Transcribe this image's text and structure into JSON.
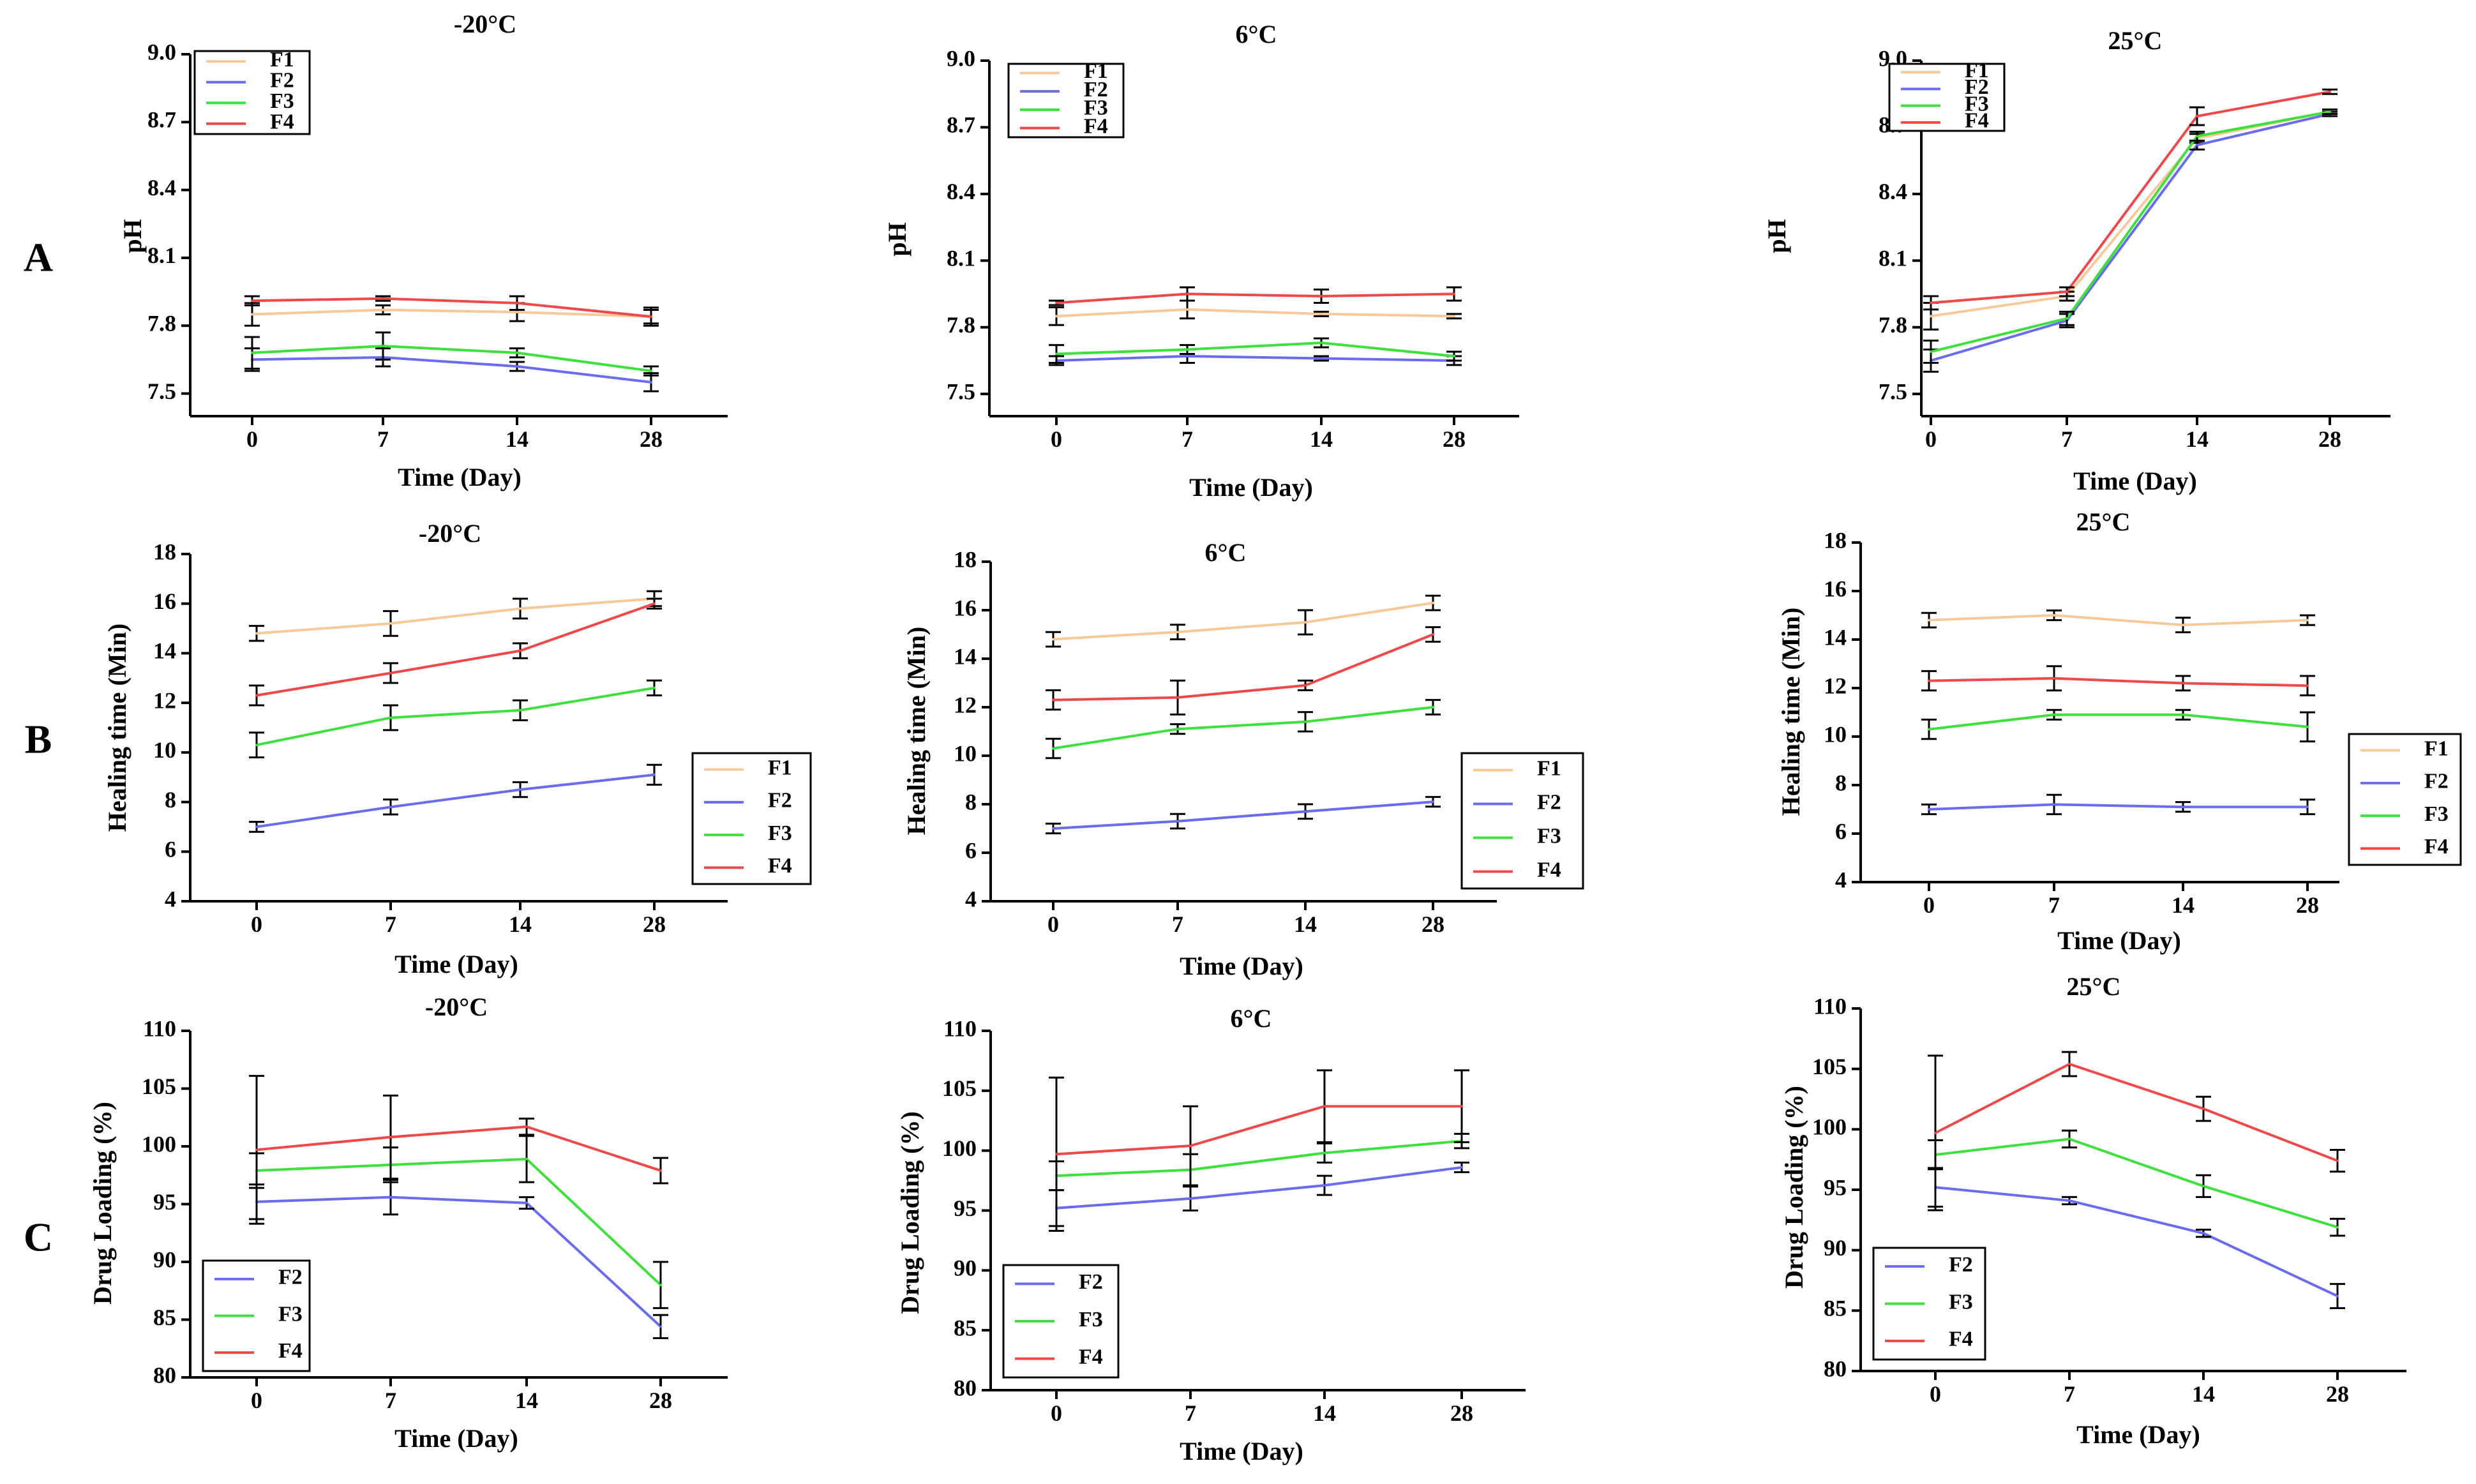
{
  "row_labels": [
    "A",
    "B",
    "C"
  ],
  "chart_data": [
    {
      "id": "A1",
      "row": "A",
      "type": "line",
      "title": "-20°C",
      "xlabel": "Time (Day)",
      "ylabel": "pH",
      "categories": [
        "0",
        "7",
        "14",
        "28"
      ],
      "ylim": [
        7.4,
        9.0
      ],
      "yticks": [
        "7.5",
        "7.8",
        "8.1",
        "8.4",
        "8.7",
        "9.0"
      ],
      "series": [
        {
          "name": "F1",
          "color": "#f5c99a",
          "values": [
            7.85,
            7.87,
            7.86,
            7.84
          ],
          "errors": [
            0.05,
            0.02,
            0.04,
            0.03
          ]
        },
        {
          "name": "F2",
          "color": "#6b6bf0",
          "values": [
            7.65,
            7.66,
            7.62,
            7.55
          ],
          "errors": [
            0.05,
            0.04,
            0.02,
            0.04
          ]
        },
        {
          "name": "F3",
          "color": "#3ee03e",
          "values": [
            7.68,
            7.71,
            7.68,
            7.6
          ],
          "errors": [
            0.07,
            0.06,
            0.02,
            0.02
          ]
        },
        {
          "name": "F4",
          "color": "#f04848",
          "values": [
            7.91,
            7.92,
            7.9,
            7.84
          ],
          "errors": [
            0.02,
            0.01,
            0.03,
            0.04
          ]
        }
      ]
    },
    {
      "id": "A2",
      "row": "A",
      "type": "line",
      "title": "6°C",
      "xlabel": "Time (Day)",
      "ylabel": "pH",
      "categories": [
        "0",
        "7",
        "14",
        "28"
      ],
      "ylim": [
        7.4,
        9.0
      ],
      "yticks": [
        "7.5",
        "7.8",
        "8.1",
        "8.4",
        "8.7",
        "9.0"
      ],
      "series": [
        {
          "name": "F1",
          "color": "#f5c99a",
          "values": [
            7.85,
            7.88,
            7.86,
            7.85
          ],
          "errors": [
            0.04,
            0.04,
            0.01,
            0.01
          ]
        },
        {
          "name": "F2",
          "color": "#6b6bf0",
          "values": [
            7.65,
            7.67,
            7.66,
            7.65
          ],
          "errors": [
            0.02,
            0.03,
            0.01,
            0.02
          ]
        },
        {
          "name": "F3",
          "color": "#3ee03e",
          "values": [
            7.68,
            7.7,
            7.73,
            7.67
          ],
          "errors": [
            0.04,
            0.02,
            0.02,
            0.02
          ]
        },
        {
          "name": "F4",
          "color": "#f04848",
          "values": [
            7.91,
            7.95,
            7.94,
            7.95
          ],
          "errors": [
            0.01,
            0.03,
            0.03,
            0.03
          ]
        }
      ]
    },
    {
      "id": "A3",
      "row": "A",
      "type": "line",
      "title": "25°C",
      "xlabel": "Time (Day)",
      "ylabel": "pH",
      "categories": [
        "0",
        "7",
        "14",
        "28"
      ],
      "ylim": [
        7.4,
        9.0
      ],
      "yticks": [
        "7.5",
        "7.8",
        "8.1",
        "8.4",
        "8.7",
        "9.0"
      ],
      "series": [
        {
          "name": "F1",
          "color": "#f5c99a",
          "values": [
            7.85,
            7.94,
            8.65,
            8.77
          ],
          "errors": [
            0.06,
            0.02,
            0.02,
            0.01
          ]
        },
        {
          "name": "F2",
          "color": "#6b6bf0",
          "values": [
            7.65,
            7.83,
            8.62,
            8.76
          ],
          "errors": [
            0.05,
            0.03,
            0.02,
            0.01
          ]
        },
        {
          "name": "F3",
          "color": "#3ee03e",
          "values": [
            7.69,
            7.84,
            8.66,
            8.77
          ],
          "errors": [
            0.05,
            0.03,
            0.02,
            0.01
          ]
        },
        {
          "name": "F4",
          "color": "#f04848",
          "values": [
            7.91,
            7.96,
            8.75,
            8.86
          ],
          "errors": [
            0.03,
            0.02,
            0.04,
            0.01
          ]
        }
      ]
    },
    {
      "id": "B1",
      "row": "B",
      "type": "line",
      "title": "-20°C",
      "xlabel": "Time (Day)",
      "ylabel": "Healing time (Min)",
      "categories": [
        "0",
        "7",
        "14",
        "28"
      ],
      "ylim": [
        4,
        18
      ],
      "yticks": [
        "4",
        "6",
        "8",
        "10",
        "12",
        "14",
        "16",
        "18"
      ],
      "series": [
        {
          "name": "F1",
          "color": "#f5c99a",
          "values": [
            14.8,
            15.2,
            15.8,
            16.2
          ],
          "errors": [
            0.3,
            0.5,
            0.4,
            0.3
          ]
        },
        {
          "name": "F2",
          "color": "#6b6bf0",
          "values": [
            7.0,
            7.8,
            8.5,
            9.1
          ],
          "errors": [
            0.2,
            0.3,
            0.3,
            0.4
          ]
        },
        {
          "name": "F3",
          "color": "#3ee03e",
          "values": [
            10.3,
            11.4,
            11.7,
            12.6
          ],
          "errors": [
            0.5,
            0.5,
            0.4,
            0.3
          ]
        },
        {
          "name": "F4",
          "color": "#f04848",
          "values": [
            12.3,
            13.2,
            14.1,
            16.0
          ],
          "errors": [
            0.4,
            0.4,
            0.3,
            0.2
          ]
        }
      ]
    },
    {
      "id": "B2",
      "row": "B",
      "type": "line",
      "title": "6°C",
      "xlabel": "Time (Day)",
      "ylabel": "Healing time (Min)",
      "categories": [
        "0",
        "7",
        "14",
        "28"
      ],
      "ylim": [
        4,
        18
      ],
      "yticks": [
        "4",
        "6",
        "8",
        "10",
        "12",
        "14",
        "16",
        "18"
      ],
      "series": [
        {
          "name": "F1",
          "color": "#f5c99a",
          "values": [
            14.8,
            15.1,
            15.5,
            16.3
          ],
          "errors": [
            0.3,
            0.3,
            0.5,
            0.3
          ]
        },
        {
          "name": "F2",
          "color": "#6b6bf0",
          "values": [
            7.0,
            7.3,
            7.7,
            8.1
          ],
          "errors": [
            0.2,
            0.3,
            0.3,
            0.2
          ]
        },
        {
          "name": "F3",
          "color": "#3ee03e",
          "values": [
            10.3,
            11.1,
            11.4,
            12.0
          ],
          "errors": [
            0.4,
            0.2,
            0.4,
            0.3
          ]
        },
        {
          "name": "F4",
          "color": "#f04848",
          "values": [
            12.3,
            12.4,
            12.9,
            15.0
          ],
          "errors": [
            0.4,
            0.7,
            0.2,
            0.3
          ]
        }
      ]
    },
    {
      "id": "B3",
      "row": "B",
      "type": "line",
      "title": "25°C",
      "xlabel": "Time (Day)",
      "ylabel": "Healing time (Min)",
      "categories": [
        "0",
        "7",
        "14",
        "28"
      ],
      "ylim": [
        4,
        18
      ],
      "yticks": [
        "4",
        "6",
        "8",
        "10",
        "12",
        "14",
        "16",
        "18"
      ],
      "series": [
        {
          "name": "F1",
          "color": "#f5c99a",
          "values": [
            14.8,
            15.0,
            14.6,
            14.8
          ],
          "errors": [
            0.3,
            0.2,
            0.3,
            0.2
          ]
        },
        {
          "name": "F2",
          "color": "#6b6bf0",
          "values": [
            7.0,
            7.2,
            7.1,
            7.1
          ],
          "errors": [
            0.2,
            0.4,
            0.2,
            0.3
          ]
        },
        {
          "name": "F3",
          "color": "#3ee03e",
          "values": [
            10.3,
            10.9,
            10.9,
            10.4
          ],
          "errors": [
            0.4,
            0.2,
            0.2,
            0.6
          ]
        },
        {
          "name": "F4",
          "color": "#f04848",
          "values": [
            12.3,
            12.4,
            12.2,
            12.1
          ],
          "errors": [
            0.4,
            0.5,
            0.3,
            0.4
          ]
        }
      ]
    },
    {
      "id": "C1",
      "row": "C",
      "type": "line",
      "title": "-20°C",
      "xlabel": "Time (Day)",
      "ylabel": "Drug Loading (%)",
      "categories": [
        "0",
        "7",
        "14",
        "28"
      ],
      "ylim": [
        80,
        110
      ],
      "yticks": [
        "80",
        "85",
        "90",
        "95",
        "100",
        "105",
        "110"
      ],
      "series": [
        {
          "name": "F2",
          "color": "#6b6bf0",
          "values": [
            95.2,
            95.6,
            95.1,
            84.4
          ],
          "errors": [
            1.5,
            1.5,
            0.5,
            1.0
          ]
        },
        {
          "name": "F3",
          "color": "#3ee03e",
          "values": [
            97.9,
            98.4,
            98.9,
            88.0
          ],
          "errors": [
            1.5,
            1.5,
            2.0,
            2.0
          ]
        },
        {
          "name": "F4",
          "color": "#f04848",
          "values": [
            99.7,
            100.8,
            101.7,
            97.9
          ],
          "errors": [
            6.4,
            3.6,
            0.7,
            1.1
          ]
        }
      ]
    },
    {
      "id": "C2",
      "row": "C",
      "type": "line",
      "title": "6°C",
      "xlabel": "Time (Day)",
      "ylabel": "Drug Loading (%)",
      "categories": [
        "0",
        "7",
        "14",
        "28"
      ],
      "ylim": [
        80,
        110
      ],
      "yticks": [
        "80",
        "85",
        "90",
        "95",
        "100",
        "105",
        "110"
      ],
      "series": [
        {
          "name": "F2",
          "color": "#6b6bf0",
          "values": [
            95.2,
            96.0,
            97.1,
            98.6
          ],
          "errors": [
            1.5,
            1.0,
            0.8,
            0.4
          ]
        },
        {
          "name": "F3",
          "color": "#3ee03e",
          "values": [
            97.9,
            98.4,
            99.8,
            100.8
          ],
          "errors": [
            1.2,
            1.3,
            0.8,
            0.6
          ]
        },
        {
          "name": "F4",
          "color": "#f04848",
          "values": [
            99.7,
            100.4,
            103.7,
            103.7
          ],
          "errors": [
            6.4,
            3.3,
            3.0,
            3.0
          ]
        }
      ]
    },
    {
      "id": "C3",
      "row": "C",
      "type": "line",
      "title": "25°C",
      "xlabel": "Time (Day)",
      "ylabel": "Drug Loading (%)",
      "categories": [
        "0",
        "7",
        "14",
        "28"
      ],
      "ylim": [
        80,
        110
      ],
      "yticks": [
        "80",
        "85",
        "90",
        "95",
        "100",
        "105",
        "110"
      ],
      "series": [
        {
          "name": "F2",
          "color": "#6b6bf0",
          "values": [
            95.2,
            94.1,
            91.4,
            86.2
          ],
          "errors": [
            1.6,
            0.3,
            0.3,
            1.0
          ]
        },
        {
          "name": "F3",
          "color": "#3ee03e",
          "values": [
            97.9,
            99.2,
            95.3,
            91.9
          ],
          "errors": [
            1.2,
            0.7,
            0.9,
            0.7
          ]
        },
        {
          "name": "F4",
          "color": "#f04848",
          "values": [
            99.7,
            105.4,
            101.7,
            97.4
          ],
          "errors": [
            6.4,
            1.0,
            1.0,
            0.9
          ]
        }
      ]
    }
  ]
}
